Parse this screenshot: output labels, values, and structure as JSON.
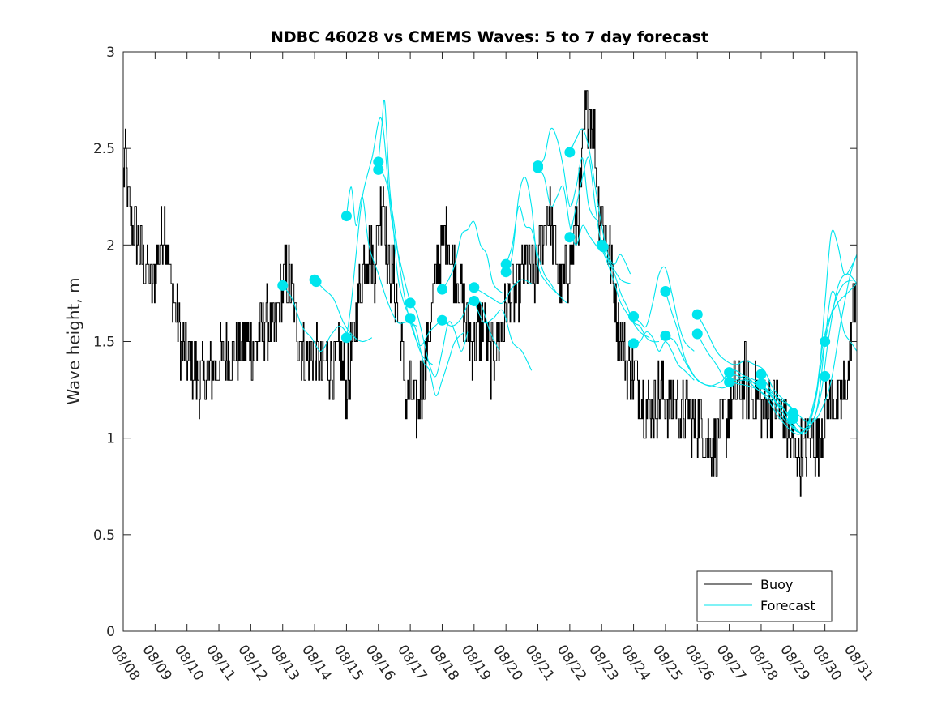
{
  "chart_data": {
    "type": "line",
    "title": "NDBC 46028 vs CMEMS Waves: 5 to 7 day forecast",
    "xlabel": "",
    "ylabel": "Wave height, m",
    "xlim": [
      0,
      23
    ],
    "ylim": [
      0,
      3
    ],
    "yticks": [
      0,
      0.5,
      1,
      1.5,
      2,
      2.5,
      3
    ],
    "ytick_labels": [
      "0",
      "0.5",
      "1",
      "1.5",
      "2",
      "2.5",
      "3"
    ],
    "xtick_labels": [
      "08/08",
      "08/09",
      "08/10",
      "08/11",
      "08/12",
      "08/13",
      "08/14",
      "08/15",
      "08/16",
      "08/17",
      "08/18",
      "08/19",
      "08/20",
      "08/21",
      "08/22",
      "08/23",
      "08/24",
      "08/25",
      "08/26",
      "08/27",
      "08/28",
      "08/29",
      "08/30",
      "08/31"
    ],
    "legend": {
      "location": "bottom-right",
      "entries": [
        "Buoy",
        "Forecast"
      ]
    },
    "colors": {
      "buoy": "#000000",
      "forecast": "#00e5ee"
    },
    "buoy_anchor": {
      "x": [
        0,
        0.05,
        0.15,
        0.3,
        0.5,
        0.7,
        0.9,
        1.1,
        1.3,
        1.5,
        1.8,
        2.1,
        2.4,
        2.7,
        3.0,
        3.3,
        3.6,
        3.85,
        4.1,
        4.3,
        4.5,
        4.75,
        5.0,
        5.2,
        5.4,
        5.6,
        5.8,
        6.0,
        6.2,
        6.4,
        6.6,
        6.8,
        7.0,
        7.2,
        7.35,
        7.5,
        7.7,
        7.85,
        8.0,
        8.15,
        8.3,
        8.5,
        8.7,
        8.85,
        9.0,
        9.2,
        9.4,
        9.55,
        9.7,
        9.85,
        10.0,
        10.15,
        10.3,
        10.5,
        10.7,
        10.9,
        11.1,
        11.3,
        11.5,
        11.7,
        11.9,
        12.1,
        12.3,
        12.5,
        12.7,
        12.9,
        13.1,
        13.3,
        13.5,
        13.7,
        13.9,
        14.1,
        14.3,
        14.45,
        14.6,
        14.75,
        14.9,
        15.1,
        15.3,
        15.5,
        15.7,
        15.9,
        16.1,
        16.3,
        16.5,
        16.7,
        16.9,
        17.1,
        17.3,
        17.5,
        17.7,
        17.9,
        18.1,
        18.3,
        18.5,
        18.7,
        18.9,
        19.1,
        19.3,
        19.5,
        19.7,
        19.9,
        20.1,
        20.3,
        20.5,
        20.7,
        20.9,
        21.05,
        21.2,
        21.4,
        21.6,
        21.8,
        21.95,
        22.1,
        22.25,
        22.4,
        22.55,
        22.7,
        22.85,
        23.0
      ],
      "y": [
        2.3,
        2.5,
        2.2,
        2.1,
        2.0,
        1.9,
        1.8,
        1.95,
        2.1,
        1.8,
        1.5,
        1.4,
        1.3,
        1.35,
        1.4,
        1.45,
        1.45,
        1.5,
        1.45,
        1.55,
        1.6,
        1.55,
        1.8,
        1.85,
        1.6,
        1.45,
        1.4,
        1.45,
        1.35,
        1.4,
        1.35,
        1.4,
        1.25,
        1.5,
        1.7,
        1.9,
        2.0,
        1.85,
        2.1,
        2.3,
        1.9,
        1.8,
        1.5,
        1.2,
        1.25,
        1.15,
        1.3,
        1.5,
        1.7,
        1.9,
        2.0,
        2.1,
        1.9,
        1.8,
        1.65,
        1.5,
        1.55,
        1.6,
        1.4,
        1.5,
        1.6,
        1.75,
        1.7,
        1.85,
        1.9,
        1.8,
        2.0,
        2.2,
        2.0,
        1.8,
        1.85,
        2.0,
        2.2,
        2.6,
        2.75,
        2.6,
        2.2,
        2.1,
        1.9,
        1.6,
        1.45,
        1.35,
        1.3,
        1.2,
        1.15,
        1.2,
        1.25,
        1.15,
        1.2,
        1.1,
        1.15,
        1.05,
        1.1,
        1.0,
        0.95,
        1.05,
        1.1,
        1.2,
        1.25,
        1.3,
        1.25,
        1.2,
        1.15,
        1.2,
        1.2,
        1.1,
        1.0,
        0.95,
        0.9,
        0.95,
        1.0,
        0.95,
        1.1,
        1.2,
        1.25,
        1.15,
        1.2,
        1.3,
        1.6,
        1.9
      ]
    },
    "forecast_series": [
      {
        "x": [
          5.0,
          5.3,
          5.6,
          5.9,
          6.2,
          6.5,
          6.8,
          7.1
        ],
        "y": [
          1.79,
          1.72,
          1.58,
          1.52,
          1.45,
          1.53,
          1.58,
          1.52
        ]
      },
      {
        "x": [
          6.0,
          6.3,
          6.6,
          6.9,
          7.2,
          7.5,
          7.8
        ],
        "y": [
          1.82,
          1.77,
          1.72,
          1.6,
          1.53,
          1.5,
          1.52
        ]
      },
      {
        "x": [
          7.0,
          7.15,
          7.3,
          7.5,
          7.7,
          8.0,
          8.3,
          8.6,
          8.9,
          9.2
        ],
        "y": [
          2.15,
          2.3,
          2.1,
          2.25,
          2.0,
          1.85,
          1.7,
          1.6,
          1.6,
          1.58
        ]
      },
      {
        "x": [
          7.0,
          7.15,
          7.3,
          7.5,
          7.8,
          8.1,
          8.4,
          8.7,
          9.0
        ],
        "y": [
          1.52,
          1.7,
          1.95,
          2.25,
          2.45,
          2.65,
          2.15,
          1.9,
          1.7
        ]
      },
      {
        "x": [
          8.0,
          8.1,
          8.2,
          8.35,
          8.5,
          8.75,
          9.0,
          9.3,
          9.6,
          9.9
        ],
        "y": [
          2.43,
          2.6,
          2.74,
          2.3,
          2.1,
          1.8,
          1.6,
          1.48,
          1.55,
          1.6
        ]
      },
      {
        "x": [
          8.0,
          8.2,
          8.4,
          8.6,
          8.8,
          9.0,
          9.2,
          9.4,
          9.7
        ],
        "y": [
          2.39,
          2.35,
          2.2,
          1.85,
          1.7,
          1.62,
          1.5,
          1.42,
          1.38
        ]
      },
      {
        "x": [
          9.0,
          9.2,
          9.4,
          9.6,
          9.8,
          10.0,
          10.2,
          10.4,
          10.6,
          10.8
        ],
        "y": [
          1.7,
          1.65,
          1.52,
          1.38,
          1.32,
          1.45,
          1.6,
          1.55,
          1.45,
          1.55
        ]
      },
      {
        "x": [
          9.0,
          9.2,
          9.4,
          9.6,
          9.8,
          10.0,
          10.2,
          10.4,
          10.7
        ],
        "y": [
          1.62,
          1.55,
          1.4,
          1.35,
          1.22,
          1.3,
          1.4,
          1.5,
          1.55
        ]
      },
      {
        "x": [
          10.0,
          10.2,
          10.4,
          10.6,
          10.8,
          11.0,
          11.2,
          11.4,
          11.6,
          11.9
        ],
        "y": [
          1.77,
          1.82,
          1.9,
          2.05,
          2.08,
          2.12,
          2.0,
          1.95,
          1.8,
          1.75
        ]
      },
      {
        "x": [
          10.0,
          10.3,
          10.6,
          10.9,
          11.2,
          11.5,
          11.8
        ],
        "y": [
          1.61,
          1.58,
          1.62,
          1.72,
          1.7,
          1.55,
          1.45
        ]
      },
      {
        "x": [
          11.0,
          11.3,
          11.6,
          11.9,
          12.2,
          12.5,
          12.8
        ],
        "y": [
          1.78,
          1.75,
          1.72,
          1.7,
          1.78,
          1.82,
          1.8
        ]
      },
      {
        "x": [
          11.0,
          11.3,
          11.6,
          11.9,
          12.2,
          12.5,
          12.8
        ],
        "y": [
          1.71,
          1.6,
          1.62,
          1.66,
          1.5,
          1.45,
          1.35
        ]
      },
      {
        "x": [
          12.0,
          12.2,
          12.4,
          12.6,
          12.8,
          13.0,
          13.2,
          13.4,
          13.6,
          13.9
        ],
        "y": [
          1.9,
          2.0,
          2.2,
          2.1,
          2.08,
          1.95,
          1.85,
          1.8,
          1.75,
          1.7
        ]
      },
      {
        "x": [
          12.0,
          12.2,
          12.4,
          12.6,
          12.8,
          13.0,
          13.3,
          13.6
        ],
        "y": [
          1.86,
          1.95,
          2.25,
          2.35,
          2.2,
          1.9,
          1.8,
          1.75
        ]
      },
      {
        "x": [
          13.0,
          13.2,
          13.4,
          13.6,
          13.8,
          14.0,
          14.2,
          14.4,
          14.6,
          14.9
        ],
        "y": [
          2.41,
          2.45,
          2.6,
          2.55,
          2.4,
          2.2,
          2.3,
          2.45,
          2.2,
          2.12
        ]
      },
      {
        "x": [
          13.0,
          13.2,
          13.4,
          13.6,
          13.8,
          14.0,
          14.2,
          14.4,
          14.6,
          14.9
        ],
        "y": [
          2.4,
          2.35,
          2.2,
          2.25,
          2.3,
          2.1,
          2.0,
          2.1,
          2.05,
          1.98
        ]
      },
      {
        "x": [
          14.0,
          14.2,
          14.4,
          14.6,
          14.8,
          15.0,
          15.2,
          15.4,
          15.6,
          15.9
        ],
        "y": [
          2.48,
          2.55,
          2.6,
          2.5,
          2.3,
          2.1,
          1.95,
          1.9,
          1.95,
          1.85
        ]
      },
      {
        "x": [
          14.0,
          14.2,
          14.4,
          14.6,
          14.8,
          15.0,
          15.3,
          15.6,
          15.9
        ],
        "y": [
          2.04,
          2.2,
          2.35,
          2.45,
          2.2,
          2.0,
          1.9,
          1.82,
          1.8
        ]
      },
      {
        "x": [
          15.0,
          15.2,
          15.4,
          15.6,
          15.8,
          16.0,
          16.2,
          16.4,
          16.6,
          16.8
        ],
        "y": [
          2.0,
          1.92,
          1.85,
          1.75,
          1.68,
          1.6,
          1.58,
          1.52,
          1.5,
          1.5
        ]
      },
      {
        "x": [
          15.0,
          15.2,
          15.4,
          15.6,
          15.9,
          16.2,
          16.5
        ],
        "y": [
          1.98,
          1.9,
          1.8,
          1.7,
          1.62,
          1.55,
          1.52
        ]
      },
      {
        "x": [
          16.0,
          16.2,
          16.4,
          16.6,
          16.8,
          17.0,
          17.2,
          17.4,
          17.6,
          17.9
        ],
        "y": [
          1.63,
          1.6,
          1.58,
          1.7,
          1.85,
          1.88,
          1.75,
          1.6,
          1.5,
          1.45
        ]
      },
      {
        "x": [
          16.0,
          16.2,
          16.4,
          16.6,
          16.8,
          17.0,
          17.2,
          17.4,
          17.6,
          17.9
        ],
        "y": [
          1.49,
          1.5,
          1.55,
          1.52,
          1.45,
          1.5,
          1.45,
          1.38,
          1.35,
          1.3
        ]
      },
      {
        "x": [
          17.0,
          17.2,
          17.4,
          17.6,
          17.8,
          18.0,
          18.2,
          18.4,
          18.6,
          18.8,
          19.0,
          19.2,
          19.5,
          19.8,
          20.2,
          20.6,
          21.0
        ],
        "y": [
          1.76,
          1.65,
          1.55,
          1.42,
          1.35,
          1.3,
          1.28,
          1.27,
          1.28,
          1.3,
          1.35,
          1.35,
          1.32,
          1.3,
          1.25,
          1.2,
          1.15
        ]
      },
      {
        "x": [
          17.0,
          17.3,
          17.6,
          17.9,
          18.2,
          18.5,
          18.8,
          19.1,
          19.5,
          19.9,
          20.3,
          20.7,
          21.1
        ],
        "y": [
          1.53,
          1.5,
          1.4,
          1.32,
          1.28,
          1.27,
          1.26,
          1.28,
          1.3,
          1.25,
          1.2,
          1.1,
          1.05
        ]
      },
      {
        "x": [
          18.0,
          18.3,
          18.6,
          18.9,
          19.2,
          19.5,
          19.8,
          20.1,
          20.4,
          20.7,
          21.0,
          21.3,
          21.6,
          21.9,
          22.2,
          22.5,
          22.8,
          23.0
        ],
        "y": [
          1.64,
          1.55,
          1.45,
          1.4,
          1.38,
          1.4,
          1.38,
          1.35,
          1.25,
          1.2,
          1.15,
          1.1,
          1.08,
          1.15,
          1.3,
          1.6,
          1.85,
          1.95
        ]
      },
      {
        "x": [
          18.0,
          18.3,
          18.6,
          18.9,
          19.2,
          19.5,
          19.8,
          20.1,
          20.4,
          20.7,
          21.0,
          21.3,
          21.6,
          21.8,
          22.0,
          22.2,
          22.4,
          22.6,
          22.8,
          23.0
        ],
        "y": [
          1.54,
          1.45,
          1.38,
          1.3,
          1.3,
          1.32,
          1.28,
          1.25,
          1.2,
          1.15,
          1.1,
          1.05,
          1.08,
          1.2,
          1.5,
          1.75,
          1.7,
          1.55,
          1.5,
          1.45
        ]
      },
      {
        "x": [
          19.0,
          19.3,
          19.6,
          19.9,
          20.2,
          20.5,
          20.8,
          21.0,
          21.2,
          21.4,
          21.6,
          21.8,
          22.0,
          22.2,
          22.4,
          22.6,
          22.8,
          23.0
        ],
        "y": [
          1.34,
          1.32,
          1.3,
          1.28,
          1.25,
          1.18,
          1.1,
          1.05,
          1.03,
          1.05,
          1.12,
          1.3,
          1.7,
          2.06,
          2.0,
          1.85,
          1.88,
          1.95
        ]
      },
      {
        "x": [
          19.0,
          19.3,
          19.6,
          19.9,
          20.2,
          20.5,
          20.8,
          21.0,
          21.2,
          21.4,
          21.6,
          21.8,
          22.0,
          22.3,
          22.6,
          23.0
        ],
        "y": [
          1.29,
          1.28,
          1.27,
          1.25,
          1.2,
          1.12,
          1.06,
          1.03,
          1.02,
          1.05,
          1.15,
          1.3,
          1.5,
          1.7,
          1.8,
          1.82
        ]
      },
      {
        "x": [
          20.0,
          20.3,
          20.6,
          20.9,
          21.1,
          21.3,
          21.5,
          21.7,
          21.9,
          22.1,
          22.4,
          22.7,
          23.0
        ],
        "y": [
          1.33,
          1.25,
          1.18,
          1.1,
          1.05,
          1.02,
          1.05,
          1.12,
          1.25,
          1.5,
          1.78,
          1.85,
          1.8
        ]
      },
      {
        "x": [
          20.0,
          20.3,
          20.6,
          20.9,
          21.1,
          21.3,
          21.5,
          21.7,
          21.9,
          22.1,
          22.4,
          22.7,
          23.0
        ],
        "y": [
          1.28,
          1.22,
          1.15,
          1.08,
          1.04,
          1.03,
          1.08,
          1.2,
          1.45,
          1.6,
          1.7,
          1.75,
          1.8
        ]
      }
    ],
    "forecast_init_points": {
      "x": [
        5.0,
        6.0,
        6.05,
        7.0,
        7.0,
        8.0,
        8.0,
        9.0,
        9.0,
        10.0,
        10.0,
        11.0,
        11.0,
        12.0,
        12.0,
        13.0,
        13.0,
        14.0,
        14.0,
        15.0,
        15.05,
        16.0,
        16.0,
        17.0,
        17.0,
        18.0,
        18.0,
        19.0,
        19.0,
        20.0,
        20.0,
        21.0,
        21.0,
        22.0,
        22.0
      ],
      "y": [
        1.79,
        1.82,
        1.81,
        2.15,
        1.52,
        2.43,
        2.39,
        1.7,
        1.62,
        1.77,
        1.61,
        1.78,
        1.71,
        1.9,
        1.86,
        2.41,
        2.4,
        2.48,
        2.04,
        2.0,
        1.99,
        1.63,
        1.49,
        1.76,
        1.53,
        1.64,
        1.54,
        1.34,
        1.29,
        1.33,
        1.28,
        1.13,
        1.1,
        1.5,
        1.32
      ]
    }
  }
}
